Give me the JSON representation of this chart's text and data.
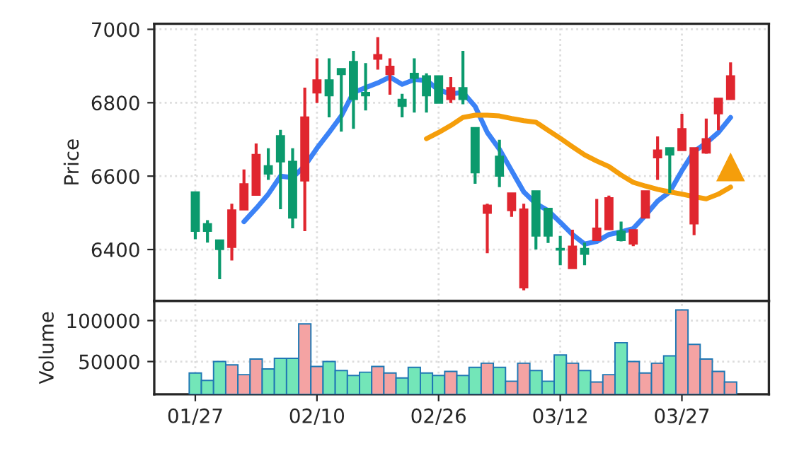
{
  "chart_data": [
    {
      "type": "candlestick",
      "ylabel": "Price",
      "ylim": [
        6260,
        7015
      ],
      "yticks": [
        6400,
        6600,
        6800,
        7000
      ],
      "grid": true,
      "tick_labels": "y",
      "categories": [
        null,
        null,
        null,
        null,
        null,
        null,
        null,
        null,
        null,
        null,
        null,
        null,
        null,
        null,
        null,
        null,
        null,
        null,
        null,
        null,
        null,
        null,
        null,
        null,
        null,
        null,
        null,
        null,
        null,
        null,
        null,
        null,
        null,
        null,
        null,
        null,
        null,
        null,
        null,
        null,
        null,
        null,
        null,
        null,
        null
      ],
      "ohlc": [
        [
          6450,
          6557,
          6428,
          6557
        ],
        [
          6450,
          6480,
          6419,
          6470
        ],
        [
          6400,
          6426,
          6319,
          6426
        ],
        [
          6508,
          6525,
          6370,
          6406
        ],
        [
          6579,
          6618,
          6508,
          6508
        ],
        [
          6659,
          6689,
          6548,
          6548
        ],
        [
          6606,
          6676,
          6590,
          6628
        ],
        [
          6639,
          6726,
          6510,
          6710
        ],
        [
          6486,
          6676,
          6458,
          6640
        ],
        [
          6761,
          6841,
          6450,
          6587
        ],
        [
          6862,
          6921,
          6799,
          6827
        ],
        [
          6819,
          6921,
          6760,
          6862
        ],
        [
          6877,
          6893,
          6721,
          6893
        ],
        [
          6809,
          6941,
          6729,
          6912
        ],
        [
          6819,
          6908,
          6779,
          6828
        ],
        [
          6931,
          6979,
          6890,
          6919
        ],
        [
          6899,
          6921,
          6822,
          6877
        ],
        [
          6790,
          6824,
          6760,
          6809
        ],
        [
          6867,
          6921,
          6773,
          6880
        ],
        [
          6819,
          6880,
          6773,
          6873
        ],
        [
          6799,
          6873,
          6799,
          6873
        ],
        [
          6841,
          6870,
          6799,
          6809
        ],
        [
          6809,
          6941,
          6796,
          6841
        ],
        [
          6609,
          6732,
          6579,
          6732
        ],
        [
          6521,
          6525,
          6390,
          6499
        ],
        [
          6600,
          6699,
          6570,
          6654
        ],
        [
          6554,
          6554,
          6489,
          6506
        ],
        [
          6510,
          6525,
          6289,
          6296
        ],
        [
          6437,
          6560,
          6400,
          6560
        ],
        [
          6437,
          6512,
          6418,
          6512
        ],
        [
          6399,
          6437,
          6357,
          6403
        ],
        [
          6409,
          6454,
          6348,
          6348
        ],
        [
          6387,
          6419,
          6357,
          6403
        ],
        [
          6458,
          6538,
          6425,
          6425
        ],
        [
          6541,
          6547,
          6454,
          6454
        ],
        [
          6425,
          6476,
          6422,
          6450
        ],
        [
          6454,
          6454,
          6409,
          6415
        ],
        [
          6560,
          6560,
          6486,
          6486
        ],
        [
          6671,
          6708,
          6590,
          6650
        ],
        [
          6658,
          6677,
          6554,
          6677
        ],
        [
          6729,
          6770,
          6670,
          6670
        ],
        [
          6677,
          6677,
          6439,
          6470
        ],
        [
          6702,
          6757,
          6661,
          6663
        ],
        [
          6812,
          6812,
          6725,
          6770
        ],
        [
          6873,
          6910,
          6809,
          6809
        ]
      ],
      "colors": [
        "#0b9a6d",
        "#0b9a6d",
        "#0b9a6d",
        "#e0262f",
        "#e0262f",
        "#e0262f",
        "#0b9a6d",
        "#0b9a6d",
        "#0b9a6d",
        "#e0262f",
        "#e0262f",
        "#0b9a6d",
        "#0b9a6d",
        "#0b9a6d",
        "#0b9a6d",
        "#e0262f",
        "#e0262f",
        "#0b9a6d",
        "#0b9a6d",
        "#0b9a6d",
        "#0b9a6d",
        "#e0262f",
        "#0b9a6d",
        "#0b9a6d",
        "#e0262f",
        "#0b9a6d",
        "#e0262f",
        "#e0262f",
        "#0b9a6d",
        "#0b9a6d",
        "#0b9a6d",
        "#e0262f",
        "#0b9a6d",
        "#e0262f",
        "#e0262f",
        "#0b9a6d",
        "#e0262f",
        "#e0262f",
        "#e0262f",
        "#0b9a6d",
        "#e0262f",
        "#e0262f",
        "#e0262f",
        "#e0262f",
        "#e0262f"
      ],
      "series": [
        {
          "type": "line",
          "color": "#3b82f6",
          "values": [
            null,
            null,
            null,
            null,
            6476,
            6512,
            6551,
            6600,
            6596,
            6628,
            6676,
            6719,
            6764,
            6828,
            6841,
            6854,
            6870,
            6850,
            6863,
            6861,
            6835,
            6824,
            6828,
            6790,
            6719,
            6673,
            6615,
            6557,
            6525,
            6506,
            6474,
            6441,
            6415,
            6422,
            6441,
            6448,
            6457,
            6493,
            6532,
            6557,
            6615,
            6667,
            6690,
            6719,
            6760
          ]
        },
        {
          "type": "line",
          "color": "#f59e0b",
          "values": [
            null,
            null,
            null,
            null,
            null,
            null,
            null,
            null,
            null,
            null,
            null,
            null,
            null,
            null,
            null,
            null,
            null,
            null,
            null,
            6702,
            6719,
            6738,
            6760,
            6766,
            6766,
            6764,
            6757,
            6751,
            6747,
            6725,
            6703,
            6680,
            6658,
            6641,
            6626,
            6603,
            6583,
            6573,
            6564,
            6557,
            6551,
            6544,
            6538,
            6551,
            6570
          ]
        }
      ]
    },
    {
      "type": "bar",
      "ylabel": "Volume",
      "ylim": [
        10000,
        124000
      ],
      "yticks": [
        50000,
        100000
      ],
      "grid": true,
      "categories": [
        "01/27",
        null,
        null,
        null,
        null,
        null,
        null,
        null,
        null,
        null,
        "02/10",
        null,
        null,
        null,
        null,
        null,
        null,
        null,
        null,
        null,
        "02/26",
        null,
        null,
        null,
        null,
        null,
        null,
        null,
        null,
        null,
        "03/12",
        null,
        null,
        null,
        null,
        null,
        null,
        null,
        null,
        null,
        "03/27",
        null,
        null,
        null,
        null
      ],
      "values": [
        36000,
        27000,
        50000,
        46000,
        34000,
        53000,
        41000,
        54000,
        54000,
        96000,
        44000,
        50000,
        39000,
        33000,
        37000,
        44000,
        36000,
        30000,
        43000,
        36000,
        33000,
        38000,
        33000,
        43000,
        48000,
        43000,
        26000,
        48000,
        39000,
        26000,
        58000,
        48000,
        39000,
        25000,
        34000,
        73000,
        50000,
        36000,
        48000,
        57000,
        113000,
        71000,
        53000,
        38000,
        25000
      ],
      "colors": [
        "#73e6b8",
        "#73e6b8",
        "#73e6b8",
        "#f4a3a3",
        "#f4a3a3",
        "#f4a3a3",
        "#73e6b8",
        "#73e6b8",
        "#73e6b8",
        "#f4a3a3",
        "#f4a3a3",
        "#73e6b8",
        "#73e6b8",
        "#73e6b8",
        "#73e6b8",
        "#f4a3a3",
        "#f4a3a3",
        "#73e6b8",
        "#73e6b8",
        "#73e6b8",
        "#73e6b8",
        "#f4a3a3",
        "#73e6b8",
        "#73e6b8",
        "#f4a3a3",
        "#73e6b8",
        "#f4a3a3",
        "#f4a3a3",
        "#73e6b8",
        "#73e6b8",
        "#73e6b8",
        "#f4a3a3",
        "#73e6b8",
        "#f4a3a3",
        "#f4a3a3",
        "#73e6b8",
        "#f4a3a3",
        "#f4a3a3",
        "#f4a3a3",
        "#73e6b8",
        "#f4a3a3",
        "#f4a3a3",
        "#f4a3a3",
        "#f4a3a3",
        "#f4a3a3"
      ]
    }
  ]
}
